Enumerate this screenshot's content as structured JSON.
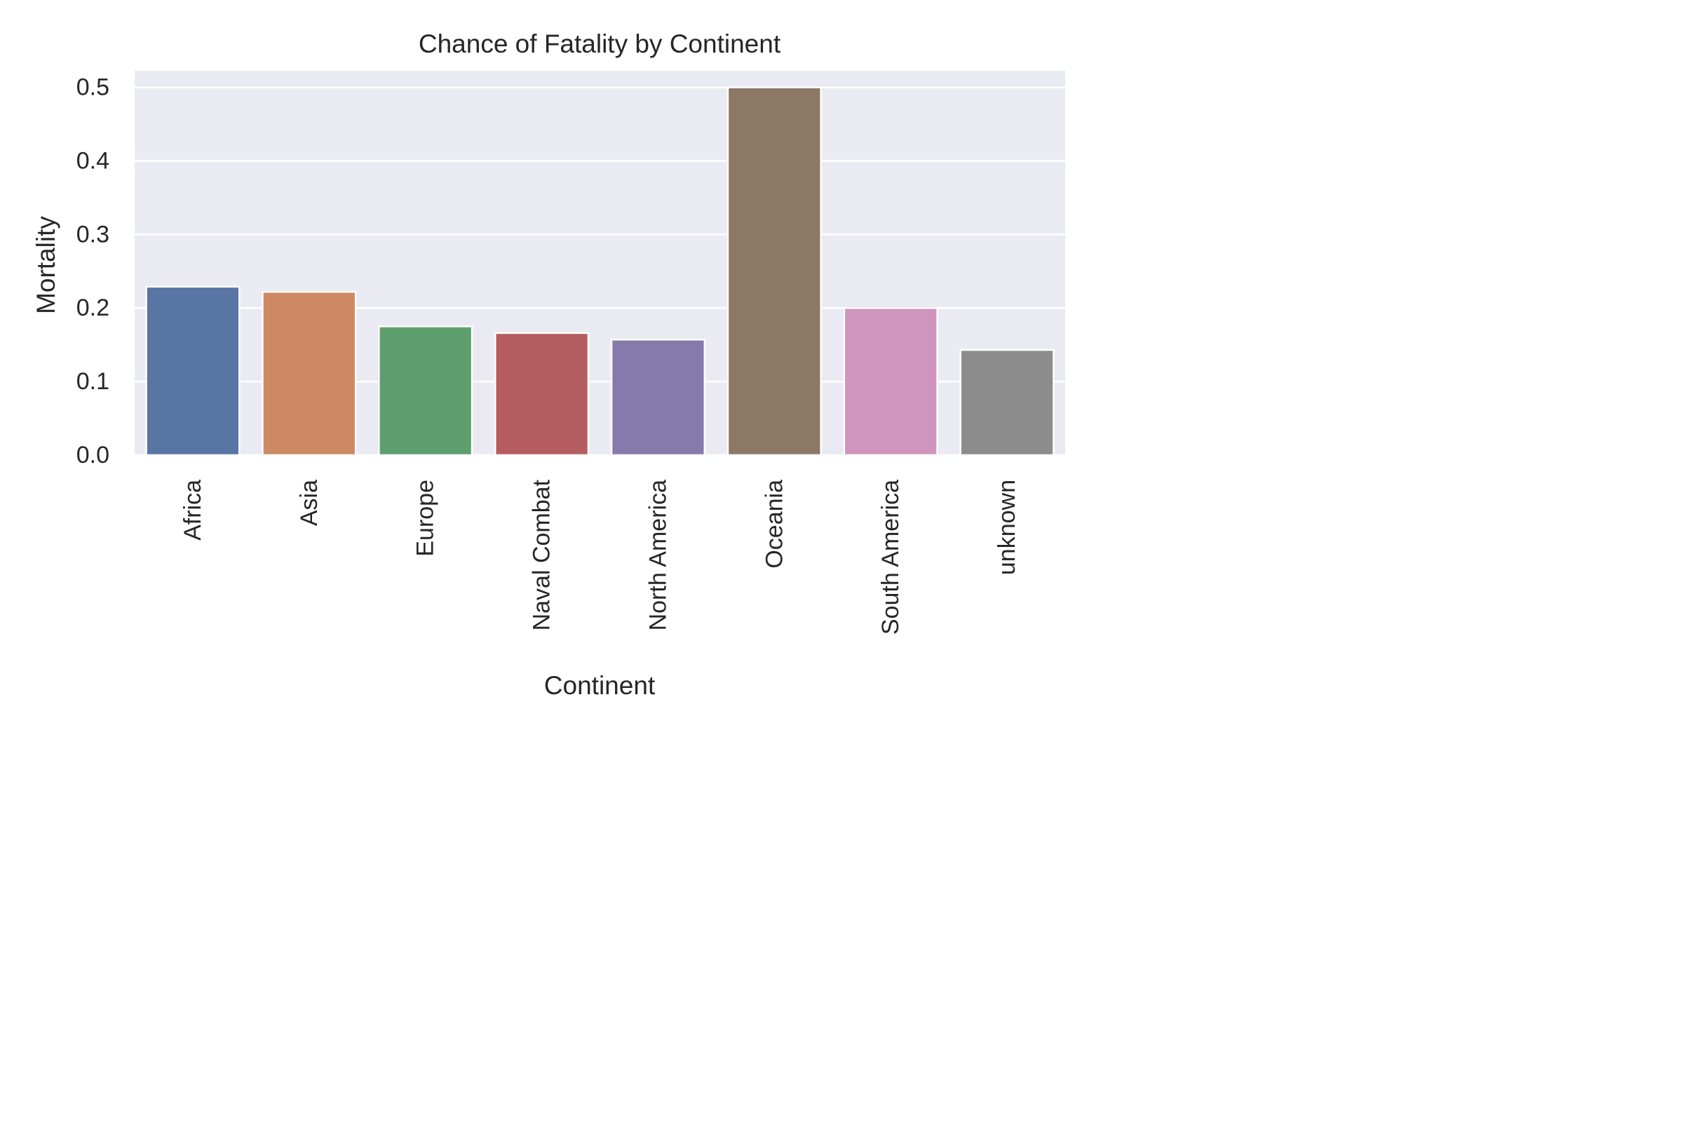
{
  "chart_data": {
    "type": "bar",
    "title": "Chance of Fatality by Continent",
    "xlabel": "Continent",
    "ylabel": "Mortality",
    "categories": [
      "Africa",
      "Asia",
      "Europe",
      "Naval Combat",
      "North America",
      "Oceania",
      "South America",
      "unknown"
    ],
    "values": [
      0.229,
      0.222,
      0.175,
      0.166,
      0.157,
      0.5,
      0.2,
      0.143
    ],
    "colors": [
      "#5975a4",
      "#cc8963",
      "#5f9e6e",
      "#b55d60",
      "#857aab",
      "#8d7866",
      "#d095bf",
      "#8c8c8c"
    ],
    "ylim": [
      0,
      0.5225
    ],
    "yticks": [
      0.0,
      0.1,
      0.2,
      0.3,
      0.4,
      0.5
    ],
    "ytick_labels": [
      "0.0",
      "0.1",
      "0.2",
      "0.3",
      "0.4",
      "0.5"
    ],
    "grid": true,
    "background": "#eaeaf2",
    "grid_color": "#ffffff",
    "xtick_rotation": "vertical"
  }
}
